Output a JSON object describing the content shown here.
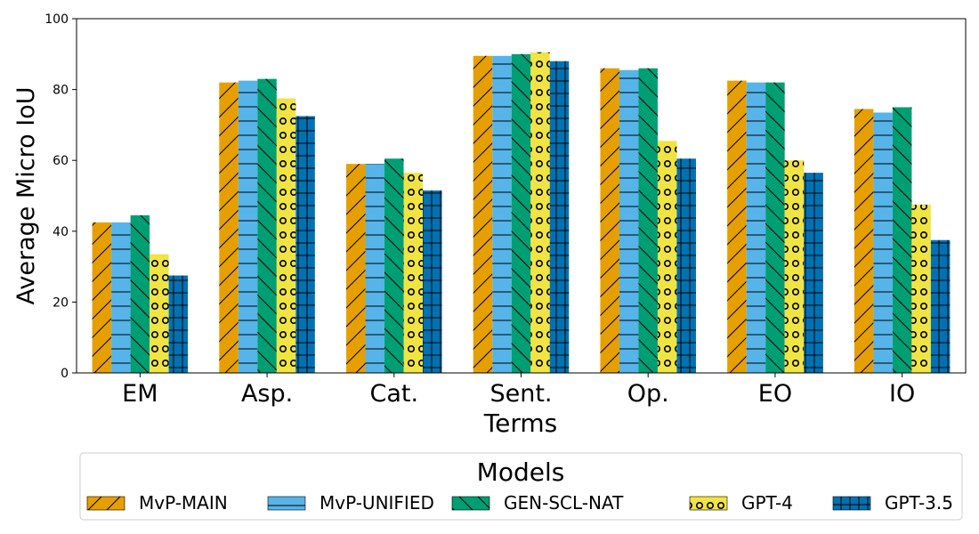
{
  "chart_data": {
    "type": "bar",
    "xlabel": "Terms",
    "ylabel": "Average Micro IoU",
    "ylim": [
      0,
      100
    ],
    "yticks": [
      0,
      20,
      40,
      60,
      80,
      100
    ],
    "categories": [
      "EM",
      "Asp.",
      "Cat.",
      "Sent.",
      "Op.",
      "EO",
      "IO"
    ],
    "legend_title": "Models",
    "legend_position": "bottom",
    "grid": false,
    "series": [
      {
        "name": "MvP-MAIN",
        "color": "#E69F00",
        "hatch": "diagonal",
        "values": [
          42.5,
          82.0,
          59.0,
          89.5,
          86.0,
          82.5,
          74.5
        ]
      },
      {
        "name": "MvP-UNIFIED",
        "color": "#56B4E9",
        "hatch": "horizontal",
        "values": [
          42.5,
          82.5,
          59.0,
          89.5,
          85.5,
          82.0,
          73.5
        ]
      },
      {
        "name": "GEN-SCL-NAT",
        "color": "#009E73",
        "hatch": "backdiagonal",
        "values": [
          44.5,
          83.0,
          60.5,
          90.0,
          86.0,
          82.0,
          75.0
        ]
      },
      {
        "name": "GPT-4",
        "color": "#F0E442",
        "hatch": "circles",
        "values": [
          33.5,
          77.5,
          56.5,
          90.5,
          65.5,
          60.0,
          47.5
        ]
      },
      {
        "name": "GPT-3.5",
        "color": "#0072B2",
        "hatch": "grid",
        "values": [
          27.5,
          72.5,
          51.5,
          88.0,
          60.5,
          56.5,
          37.5
        ]
      }
    ]
  }
}
